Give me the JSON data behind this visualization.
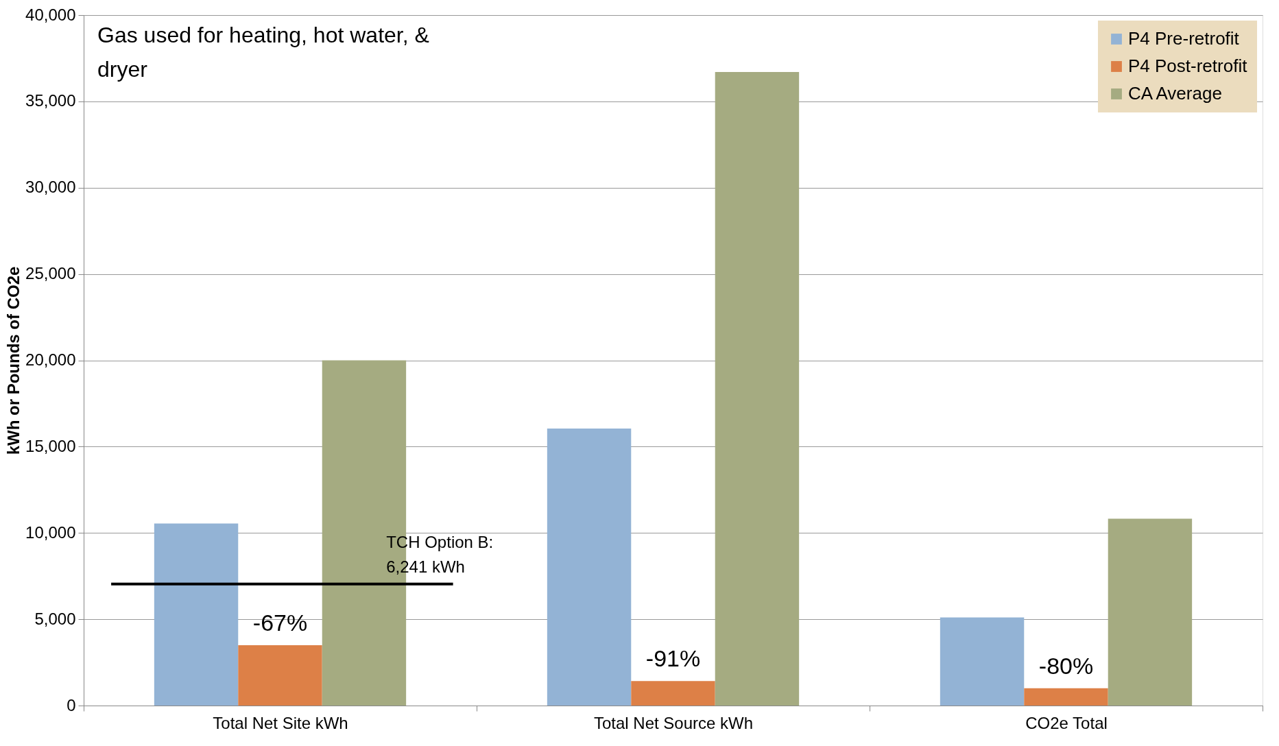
{
  "chart_data": {
    "type": "bar",
    "title": "Gas used for heating, hot water, & dryer",
    "ylabel": "kWh or Pounds of CO2e",
    "categories": [
      "Total Net Site kWh",
      "Total Net Source kWh",
      "CO2e Total"
    ],
    "series": [
      {
        "name": "P4 Pre-retrofit",
        "color": "#93b3d5",
        "values": [
          10550,
          16050,
          5100
        ]
      },
      {
        "name": "P4 Post-retrofit",
        "color": "#dd8047",
        "values": [
          3500,
          1420,
          1000
        ]
      },
      {
        "name": "CA Average",
        "color": "#a5ab81",
        "values": [
          20000,
          36700,
          10820
        ]
      }
    ],
    "ylim": [
      0,
      40000
    ],
    "yticks": [
      0,
      {
        "value": 5000,
        "label": "5,000"
      },
      {
        "value": 10000,
        "label": "10,000"
      },
      {
        "value": 15000,
        "label": "15,000"
      },
      {
        "value": 20000,
        "label": "20,000"
      },
      {
        "value": 25000,
        "label": "25,000"
      },
      {
        "value": 30000,
        "label": "30,000"
      },
      {
        "value": 35000,
        "label": "35,000"
      },
      {
        "value": 40000,
        "label": "40,000"
      }
    ],
    "grid": "y",
    "legend": "top right",
    "ref_lines": [
      {
        "axis": "y",
        "value": 7040,
        "color": "#000000"
      }
    ],
    "annotations": [
      "TCH Option B: 6,241 kWh",
      "-67%",
      "-91%",
      "-80%"
    ]
  }
}
